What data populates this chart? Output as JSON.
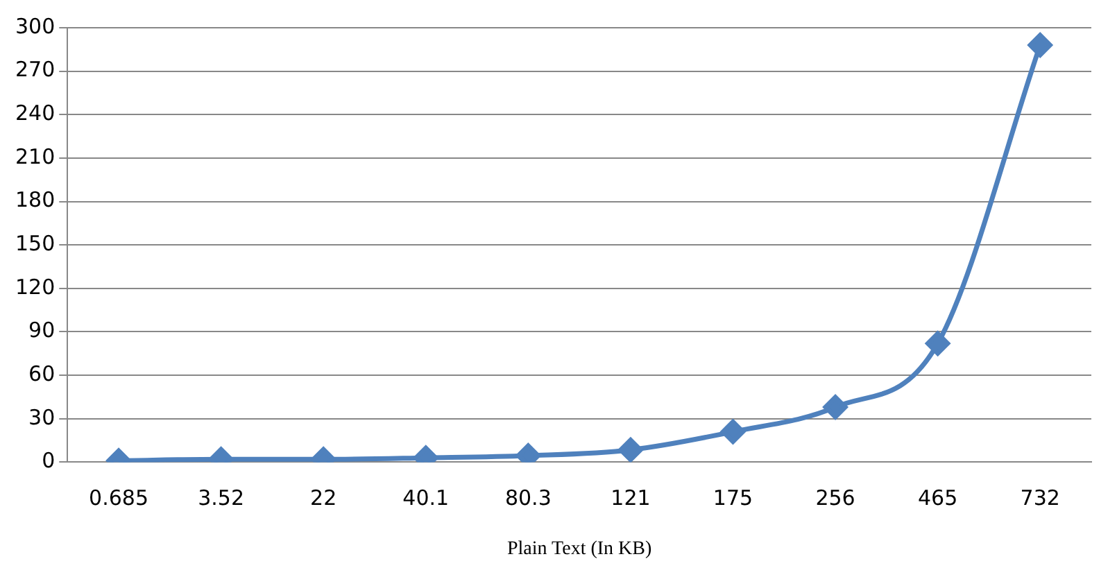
{
  "chart_data": {
    "type": "line",
    "xlabel": "Plain Text (In KB)",
    "categories": [
      "0.685",
      "3.52",
      "22",
      "40.1",
      "80.3",
      "121",
      "175",
      "256",
      "465",
      "732"
    ],
    "series": [
      {
        "color": "#4f81bd",
        "values": [
          1,
          2,
          2,
          3,
          4.5,
          8.5,
          21,
          38,
          82,
          288
        ]
      }
    ],
    "ylim": [
      0,
      300
    ],
    "yticks": [
      0,
      30,
      60,
      90,
      120,
      150,
      180,
      210,
      240,
      270,
      300
    ],
    "grid": "y",
    "legend": false,
    "marker": "diamond",
    "line_style": "solid"
  }
}
